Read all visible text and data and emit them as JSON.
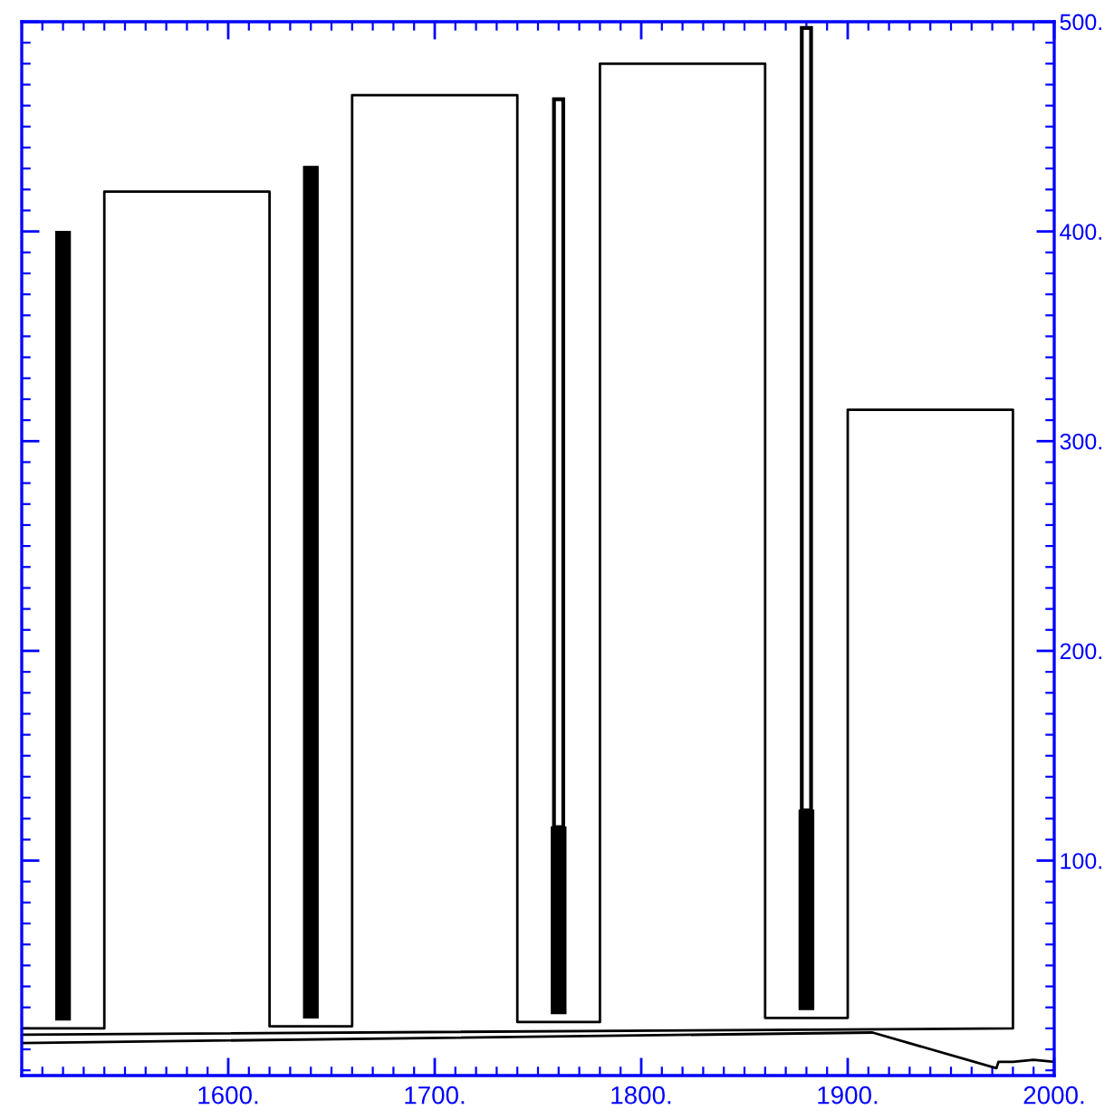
{
  "chart_data": {
    "type": "line",
    "series": [
      {
        "color": "#000000",
        "x": [
          1500,
          1540,
          1540,
          1620,
          1620,
          1660,
          1660,
          1740,
          1740,
          1780,
          1780,
          1860,
          1860,
          1900,
          1900,
          1980,
          1980,
          1500
        ],
        "values": [
          20,
          20,
          419,
          419,
          21,
          21,
          465,
          465,
          23,
          23,
          480,
          480,
          25,
          25,
          315,
          315,
          20,
          17
        ]
      },
      {
        "color": "#000000",
        "x": [
          1500,
          1912,
          1972,
          1973,
          1980,
          1990,
          2000
        ],
        "values": [
          13,
          18,
          1,
          4,
          4,
          5,
          4
        ]
      },
      {
        "type": "bar",
        "color": "#000000",
        "x": [
          1520,
          1640,
          1760,
          1880
        ],
        "base": [
          24,
          25,
          27,
          29
        ],
        "values": [
          376,
          406,
          89,
          95
        ]
      },
      {
        "type": "bar",
        "color": "#000000",
        "x": [
          1760,
          1880
        ],
        "base": [
          116,
          124
        ],
        "values": [
          347,
          373
        ]
      }
    ],
    "xlim": [
      1500,
      2000
    ],
    "ylim": [
      -2.5,
      500
    ],
    "xticks": [
      {
        "value": 1500,
        "label": null
      },
      {
        "value": 1510,
        "label": null
      },
      {
        "value": 1520,
        "label": null
      },
      {
        "value": 1530,
        "label": null
      },
      {
        "value": 1540,
        "label": null
      },
      {
        "value": 1550,
        "label": null
      },
      {
        "value": 1560,
        "label": null
      },
      {
        "value": 1570,
        "label": null
      },
      {
        "value": 1580,
        "label": null
      },
      {
        "value": 1590,
        "label": null
      },
      {
        "value": 1600,
        "label": "1600."
      },
      {
        "value": 1610,
        "label": null
      },
      {
        "value": 1620,
        "label": null
      },
      {
        "value": 1630,
        "label": null
      },
      {
        "value": 1640,
        "label": null
      },
      {
        "value": 1650,
        "label": null
      },
      {
        "value": 1660,
        "label": null
      },
      {
        "value": 1670,
        "label": null
      },
      {
        "value": 1680,
        "label": null
      },
      {
        "value": 1690,
        "label": null
      },
      {
        "value": 1700,
        "label": "1700."
      },
      {
        "value": 1710,
        "label": null
      },
      {
        "value": 1720,
        "label": null
      },
      {
        "value": 1730,
        "label": null
      },
      {
        "value": 1740,
        "label": null
      },
      {
        "value": 1750,
        "label": null
      },
      {
        "value": 1760,
        "label": null
      },
      {
        "value": 1770,
        "label": null
      },
      {
        "value": 1780,
        "label": null
      },
      {
        "value": 1790,
        "label": null
      },
      {
        "value": 1800,
        "label": "1800."
      },
      {
        "value": 1810,
        "label": null
      },
      {
        "value": 1820,
        "label": null
      },
      {
        "value": 1830,
        "label": null
      },
      {
        "value": 1840,
        "label": null
      },
      {
        "value": 1850,
        "label": null
      },
      {
        "value": 1860,
        "label": null
      },
      {
        "value": 1870,
        "label": null
      },
      {
        "value": 1880,
        "label": null
      },
      {
        "value": 1890,
        "label": null
      },
      {
        "value": 1900,
        "label": "1900."
      },
      {
        "value": 1910,
        "label": null
      },
      {
        "value": 1920,
        "label": null
      },
      {
        "value": 1930,
        "label": null
      },
      {
        "value": 1940,
        "label": null
      },
      {
        "value": 1950,
        "label": null
      },
      {
        "value": 1960,
        "label": null
      },
      {
        "value": 1970,
        "label": null
      },
      {
        "value": 1980,
        "label": null
      },
      {
        "value": 1990,
        "label": null
      },
      {
        "value": 2000,
        "label": "2000."
      }
    ],
    "yticks": [
      {
        "value": 0,
        "label": null
      },
      {
        "value": 10,
        "label": null
      },
      {
        "value": 20,
        "label": null
      },
      {
        "value": 30,
        "label": null
      },
      {
        "value": 40,
        "label": null
      },
      {
        "value": 50,
        "label": null
      },
      {
        "value": 60,
        "label": null
      },
      {
        "value": 70,
        "label": null
      },
      {
        "value": 80,
        "label": null
      },
      {
        "value": 90,
        "label": null
      },
      {
        "value": 100,
        "label": "100."
      },
      {
        "value": 110,
        "label": null
      },
      {
        "value": 120,
        "label": null
      },
      {
        "value": 130,
        "label": null
      },
      {
        "value": 140,
        "label": null
      },
      {
        "value": 150,
        "label": null
      },
      {
        "value": 160,
        "label": null
      },
      {
        "value": 170,
        "label": null
      },
      {
        "value": 180,
        "label": null
      },
      {
        "value": 190,
        "label": null
      },
      {
        "value": 200,
        "label": "200."
      },
      {
        "value": 210,
        "label": null
      },
      {
        "value": 220,
        "label": null
      },
      {
        "value": 230,
        "label": null
      },
      {
        "value": 240,
        "label": null
      },
      {
        "value": 250,
        "label": null
      },
      {
        "value": 260,
        "label": null
      },
      {
        "value": 270,
        "label": null
      },
      {
        "value": 280,
        "label": null
      },
      {
        "value": 290,
        "label": null
      },
      {
        "value": 300,
        "label": "300."
      },
      {
        "value": 310,
        "label": null
      },
      {
        "value": 320,
        "label": null
      },
      {
        "value": 330,
        "label": null
      },
      {
        "value": 340,
        "label": null
      },
      {
        "value": 350,
        "label": null
      },
      {
        "value": 360,
        "label": null
      },
      {
        "value": 370,
        "label": null
      },
      {
        "value": 380,
        "label": null
      },
      {
        "value": 390,
        "label": null
      },
      {
        "value": 400,
        "label": "400."
      },
      {
        "value": 410,
        "label": null
      },
      {
        "value": 420,
        "label": null
      },
      {
        "value": 430,
        "label": null
      },
      {
        "value": 440,
        "label": null
      },
      {
        "value": 450,
        "label": null
      },
      {
        "value": 460,
        "label": null
      },
      {
        "value": 470,
        "label": null
      },
      {
        "value": 480,
        "label": null
      },
      {
        "value": 490,
        "label": null
      },
      {
        "value": 500,
        "label": "500."
      }
    ],
    "grid": false,
    "legend": false
  }
}
